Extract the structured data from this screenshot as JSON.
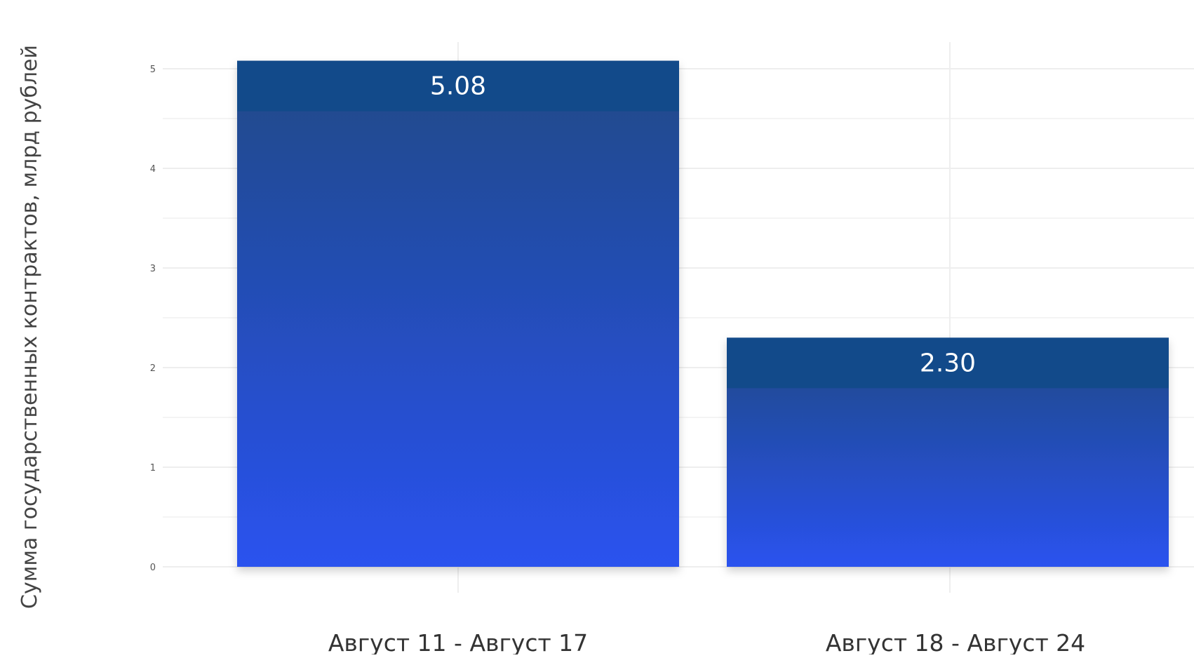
{
  "chart_data": {
    "type": "bar",
    "categories": [
      "Август 11 - Август 17",
      "Август 18 - Август 24"
    ],
    "values": [
      5.08,
      2.3
    ],
    "value_labels": [
      "5.08",
      "2.30"
    ],
    "title": "",
    "xlabel": "",
    "ylabel": "Сумма государственных контрактов, млрд рублей",
    "ylim": [
      0,
      5.25
    ],
    "yticks": [
      0,
      1,
      2,
      3,
      4,
      5
    ],
    "ytick_labels": [
      "0",
      "1",
      "2",
      "3",
      "4",
      "5"
    ],
    "grid": true,
    "legend": "none",
    "colors": {
      "bar_top": "#1f4a86",
      "bar_bottom": "#2a52ef",
      "bar_cap": "#124a8a"
    }
  }
}
